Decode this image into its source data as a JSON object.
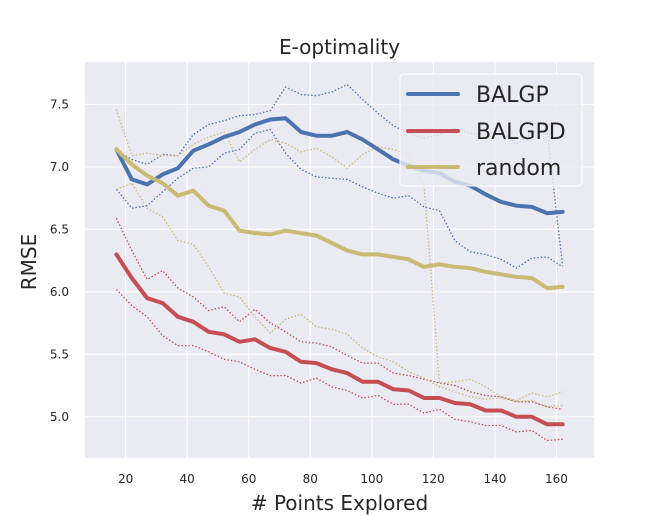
{
  "chart_data": {
    "type": "line",
    "title": "E-optimality",
    "xlabel": "# Points Explored",
    "ylabel": "RMSE",
    "xlim": [
      6.8,
      172.2
    ],
    "ylim": [
      4.67,
      7.84
    ],
    "xticks": [
      20,
      40,
      60,
      80,
      100,
      120,
      140,
      160
    ],
    "yticks": [
      5.0,
      5.5,
      6.0,
      6.5,
      7.0,
      7.5
    ],
    "xtick_labels": [
      "20",
      "40",
      "60",
      "80",
      "100",
      "120",
      "140",
      "160"
    ],
    "ytick_labels": [
      "5.0",
      "5.5",
      "6.0",
      "6.5",
      "7.0",
      "7.5"
    ],
    "grid": true,
    "legend_position": "top-right",
    "x": [
      17,
      22,
      27,
      32,
      37,
      42,
      47,
      52,
      57,
      62,
      67,
      72,
      77,
      82,
      87,
      92,
      97,
      102,
      107,
      112,
      117,
      122,
      127,
      132,
      137,
      142,
      147,
      152,
      157,
      162
    ],
    "series": [
      {
        "name": "BALGP",
        "color": "#4c72b0",
        "values": [
          7.14,
          6.9,
          6.86,
          6.94,
          6.99,
          7.13,
          7.18,
          7.24,
          7.28,
          7.34,
          7.38,
          7.39,
          7.28,
          7.25,
          7.25,
          7.28,
          7.22,
          7.14,
          7.06,
          7.01,
          6.97,
          6.95,
          6.88,
          6.85,
          6.78,
          6.72,
          6.69,
          6.68,
          6.63,
          6.64
        ],
        "upper": [
          7.13,
          7.06,
          7.02,
          7.1,
          7.09,
          7.26,
          7.34,
          7.37,
          7.41,
          7.42,
          7.45,
          7.64,
          7.58,
          7.57,
          7.6,
          7.66,
          7.54,
          7.43,
          7.33,
          7.27,
          7.23,
          7.26,
          7.31,
          7.27,
          7.26,
          7.29,
          7.18,
          7.27,
          7.28,
          6.21
        ],
        "lower": [
          6.82,
          6.67,
          6.69,
          6.8,
          6.91,
          6.99,
          7.0,
          7.11,
          7.14,
          7.27,
          7.3,
          7.11,
          6.98,
          6.92,
          6.91,
          6.9,
          6.84,
          6.79,
          6.75,
          6.77,
          6.68,
          6.65,
          6.41,
          6.32,
          6.3,
          6.26,
          6.19,
          6.27,
          6.28,
          6.2
        ]
      },
      {
        "name": "BALGPD",
        "color": "#c44e52",
        "values": [
          6.3,
          6.11,
          5.95,
          5.91,
          5.8,
          5.76,
          5.68,
          5.66,
          5.6,
          5.62,
          5.55,
          5.52,
          5.44,
          5.43,
          5.38,
          5.35,
          5.28,
          5.28,
          5.22,
          5.21,
          5.15,
          5.15,
          5.11,
          5.1,
          5.05,
          5.05,
          5.0,
          5.0,
          4.94,
          4.94
        ],
        "upper": [
          6.59,
          6.33,
          6.1,
          6.17,
          6.03,
          5.96,
          5.85,
          5.88,
          5.76,
          5.86,
          5.75,
          5.68,
          5.6,
          5.59,
          5.56,
          5.49,
          5.43,
          5.43,
          5.35,
          5.33,
          5.3,
          5.27,
          5.25,
          5.2,
          5.17,
          5.16,
          5.12,
          5.12,
          5.08,
          5.06
        ],
        "lower": [
          6.02,
          5.89,
          5.8,
          5.65,
          5.57,
          5.57,
          5.52,
          5.46,
          5.44,
          5.38,
          5.33,
          5.33,
          5.27,
          5.31,
          5.24,
          5.21,
          5.15,
          5.17,
          5.1,
          5.1,
          5.03,
          5.06,
          4.98,
          4.96,
          4.93,
          4.93,
          4.88,
          4.89,
          4.81,
          4.82
        ]
      },
      {
        "name": "random",
        "color": "#ccb974",
        "values": [
          7.14,
          7.02,
          6.93,
          6.87,
          6.77,
          6.81,
          6.69,
          6.65,
          6.49,
          6.47,
          6.46,
          6.49,
          6.47,
          6.45,
          6.39,
          6.33,
          6.3,
          6.3,
          6.28,
          6.26,
          6.2,
          6.22,
          6.2,
          6.19,
          6.16,
          6.14,
          6.12,
          6.11,
          6.03,
          6.04
        ],
        "upper": [
          7.46,
          7.09,
          7.11,
          7.09,
          7.09,
          7.18,
          7.24,
          7.28,
          7.04,
          7.14,
          7.22,
          7.19,
          7.12,
          7.15,
          7.08,
          6.99,
          7.1,
          7.16,
          7.14,
          7.1,
          6.84,
          5.27,
          5.28,
          5.3,
          5.24,
          5.16,
          5.13,
          5.19,
          5.16,
          5.2
        ],
        "lower": [
          6.82,
          6.87,
          6.67,
          6.6,
          6.41,
          6.38,
          6.2,
          5.99,
          5.96,
          5.8,
          5.67,
          5.78,
          5.82,
          5.72,
          5.7,
          5.66,
          5.55,
          5.48,
          5.44,
          5.36,
          5.31,
          5.24,
          5.2,
          5.16,
          5.14,
          5.15,
          5.12,
          5.13,
          5.08,
          5.09
        ]
      }
    ]
  }
}
